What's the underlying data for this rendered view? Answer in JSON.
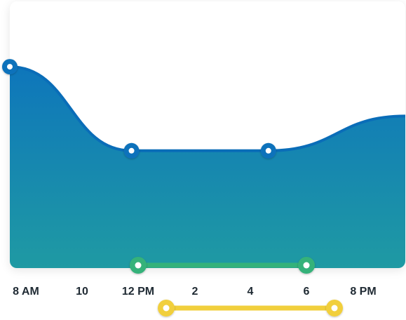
{
  "chart_data": {
    "type": "area",
    "x_categories": [
      "8 AM",
      "10",
      "12 PM",
      "2",
      "4",
      "6",
      "8 PM"
    ],
    "series": [
      {
        "points": [
          {
            "x": 8.0,
            "y": 0.755
          },
          {
            "x": 12.0,
            "y": 0.44
          },
          {
            "x": 16.5,
            "y": 0.44
          },
          {
            "x": 21.0,
            "y": 0.57
          }
        ],
        "marked_points": [
          {
            "x": 8.0,
            "y": 0.755
          },
          {
            "x": 12.0,
            "y": 0.44
          },
          {
            "x": 16.5,
            "y": 0.44
          }
        ]
      }
    ],
    "x_range": [
      8,
      21
    ],
    "y_range": [
      0,
      1
    ],
    "grid": false,
    "colors": {
      "area_top": "#0e76bb",
      "area_bottom": "#1f9aa3",
      "line": "#0a6db8",
      "marker": "#0e72bb",
      "green_range": "#34b27a",
      "yellow_range": "#f1cf3c"
    }
  },
  "ranges": {
    "green": {
      "start": 12.0,
      "end": 18.0
    },
    "yellow": {
      "start": 13.0,
      "end": 19.0
    }
  }
}
